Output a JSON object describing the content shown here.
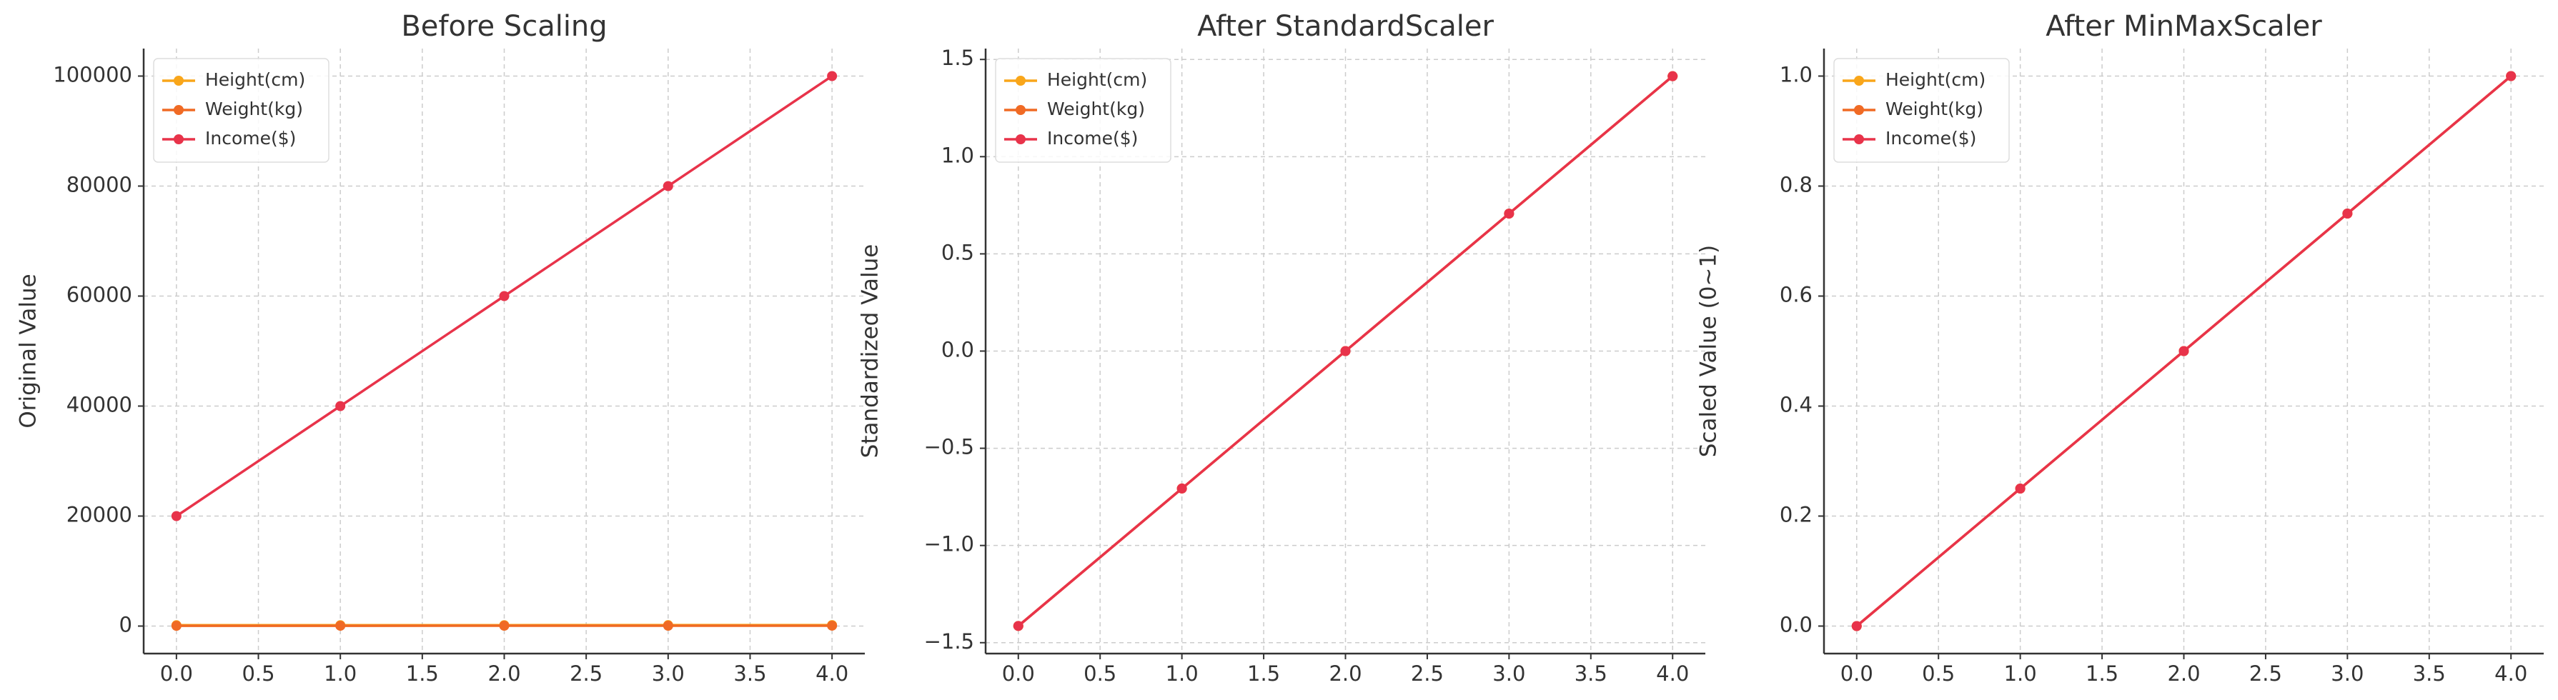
{
  "chart_data": [
    {
      "type": "line",
      "title": "Before Scaling",
      "y_label": "Original Value",
      "x": [
        0,
        1,
        2,
        3,
        4
      ],
      "series": [
        {
          "name": "Height(cm)",
          "color": "#f9a61a",
          "values": [
            160,
            165,
            170,
            175,
            180
          ]
        },
        {
          "name": "Weight(kg)",
          "color": "#f06a24",
          "values": [
            50,
            55,
            60,
            65,
            70
          ]
        },
        {
          "name": "Income($)",
          "color": "#e8334a",
          "values": [
            20000,
            40000,
            60000,
            80000,
            100000
          ]
        }
      ],
      "xlim": [
        -0.2,
        4.2
      ],
      "xticks": [
        {
          "value": 0,
          "label": "0.0"
        },
        0.5,
        {
          "value": 1,
          "label": "1.0"
        },
        1.5,
        {
          "value": 2,
          "label": "2.0"
        },
        2.5,
        {
          "value": 3,
          "label": "3.0"
        },
        3.5,
        {
          "value": 4,
          "label": "4.0"
        }
      ],
      "ylim": [
        -5000,
        105000
      ],
      "yticks": [
        0,
        20000,
        40000,
        60000,
        80000,
        100000
      ],
      "grid": true,
      "legend": "upper-left"
    },
    {
      "type": "line",
      "title": "After StandardScaler",
      "y_label": "Standardized Value",
      "x": [
        0,
        1,
        2,
        3,
        4
      ],
      "series": [
        {
          "name": "Height(cm)",
          "color": "#f9a61a",
          "values": [
            -1.414,
            -0.707,
            0,
            0.707,
            1.414
          ]
        },
        {
          "name": "Weight(kg)",
          "color": "#f06a24",
          "values": [
            -1.414,
            -0.707,
            0,
            0.707,
            1.414
          ]
        },
        {
          "name": "Income($)",
          "color": "#e8334a",
          "values": [
            -1.414,
            -0.707,
            0,
            0.707,
            1.414
          ]
        }
      ],
      "xlim": [
        -0.2,
        4.2
      ],
      "xticks": [
        {
          "value": 0,
          "label": "0.0"
        },
        0.5,
        {
          "value": 1,
          "label": "1.0"
        },
        1.5,
        {
          "value": 2,
          "label": "2.0"
        },
        2.5,
        {
          "value": 3,
          "label": "3.0"
        },
        3.5,
        {
          "value": 4,
          "label": "4.0"
        }
      ],
      "ylim": [
        -1.556,
        1.556
      ],
      "yticks": [
        {
          "value": -1.5,
          "label": "−1.5"
        },
        {
          "value": -1,
          "label": "−1.0"
        },
        {
          "value": -0.5,
          "label": "−0.5"
        },
        {
          "value": 0,
          "label": "0.0"
        },
        0.5,
        {
          "value": 1,
          "label": "1.0"
        },
        1.5
      ],
      "grid": true,
      "legend": "upper-left"
    },
    {
      "type": "line",
      "title": "After MinMaxScaler",
      "y_label": "Scaled Value (0~1)",
      "x": [
        0,
        1,
        2,
        3,
        4
      ],
      "series": [
        {
          "name": "Height(cm)",
          "color": "#f9a61a",
          "values": [
            0,
            0.25,
            0.5,
            0.75,
            1
          ]
        },
        {
          "name": "Weight(kg)",
          "color": "#f06a24",
          "values": [
            0,
            0.25,
            0.5,
            0.75,
            1
          ]
        },
        {
          "name": "Income($)",
          "color": "#e8334a",
          "values": [
            0,
            0.25,
            0.5,
            0.75,
            1
          ]
        }
      ],
      "xlim": [
        -0.2,
        4.2
      ],
      "xticks": [
        {
          "value": 0,
          "label": "0.0"
        },
        0.5,
        {
          "value": 1,
          "label": "1.0"
        },
        1.5,
        {
          "value": 2,
          "label": "2.0"
        },
        2.5,
        {
          "value": 3,
          "label": "3.0"
        },
        3.5,
        {
          "value": 4,
          "label": "4.0"
        }
      ],
      "ylim": [
        -0.05,
        1.05
      ],
      "yticks": [
        {
          "value": 0,
          "label": "0.0"
        },
        0.2,
        0.4,
        0.6,
        0.8,
        {
          "value": 1,
          "label": "1.0"
        }
      ],
      "grid": true,
      "legend": "upper-left"
    }
  ]
}
